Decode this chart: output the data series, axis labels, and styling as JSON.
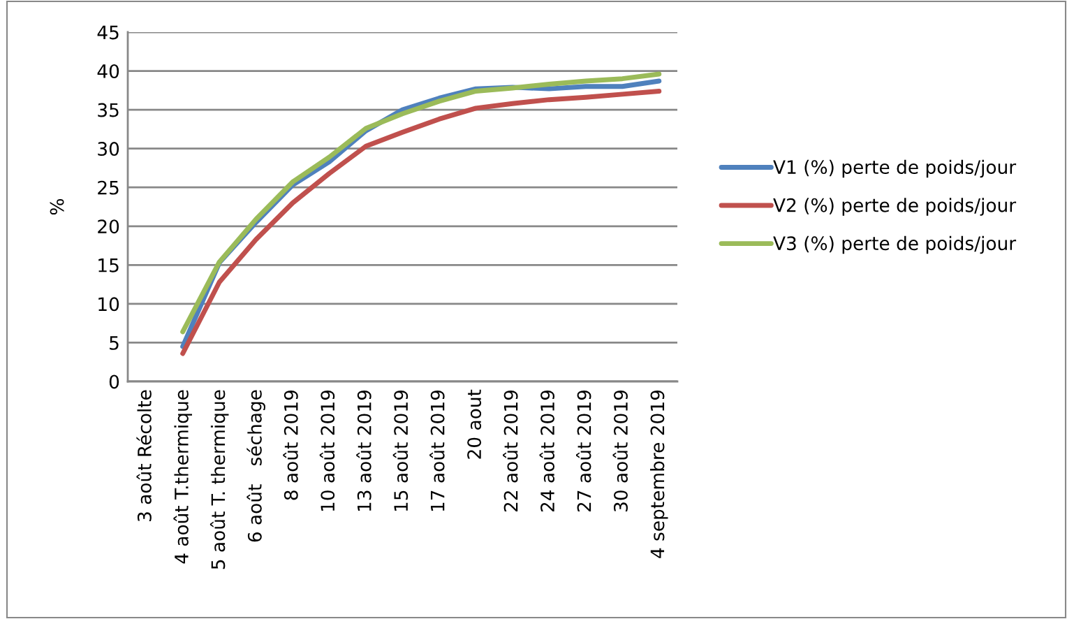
{
  "chart_data": {
    "type": "line",
    "ylabel": "%",
    "categories": [
      "3 août Récolte",
      "4 août T.thermique",
      "5 août T. thermique",
      "6 août   séchage",
      "8 août 2019",
      "10 août 2019",
      "13 août 2019",
      "15 août 2019",
      "17 août 2019",
      "20 aout",
      "22 août 2019",
      "24 août 2019",
      "27 août 2019",
      "30 août 2019",
      "4 septembre 2019"
    ],
    "series": [
      {
        "name": "V1 (%) perte de poids/jour",
        "color": "#4f81bd",
        "values": [
          null,
          4.5,
          15.3,
          20.5,
          25.3,
          28.3,
          32.3,
          35,
          36.5,
          37.7,
          37.9,
          37.7,
          38,
          38,
          38.7
        ]
      },
      {
        "name": "V2 (%) perte de poids/jour",
        "color": "#c0504d",
        "values": [
          null,
          3.6,
          12.8,
          18.3,
          23,
          26.8,
          30.3,
          32.1,
          33.8,
          35.2,
          35.8,
          36.3,
          36.6,
          37,
          37.4
        ]
      },
      {
        "name": "V3 (%) perte de poids/jour",
        "color": "#9bbb59",
        "values": [
          null,
          6.4,
          15.4,
          20.9,
          25.7,
          28.9,
          32.6,
          34.5,
          36.1,
          37.4,
          37.8,
          38.3,
          38.7,
          39,
          39.6
        ]
      }
    ],
    "ylim": [
      0,
      45
    ],
    "yticks": [
      0,
      5,
      10,
      15,
      20,
      25,
      30,
      35,
      40,
      45
    ],
    "grid": "y",
    "legend": "right",
    "marker": "none",
    "line_style": "solid"
  }
}
